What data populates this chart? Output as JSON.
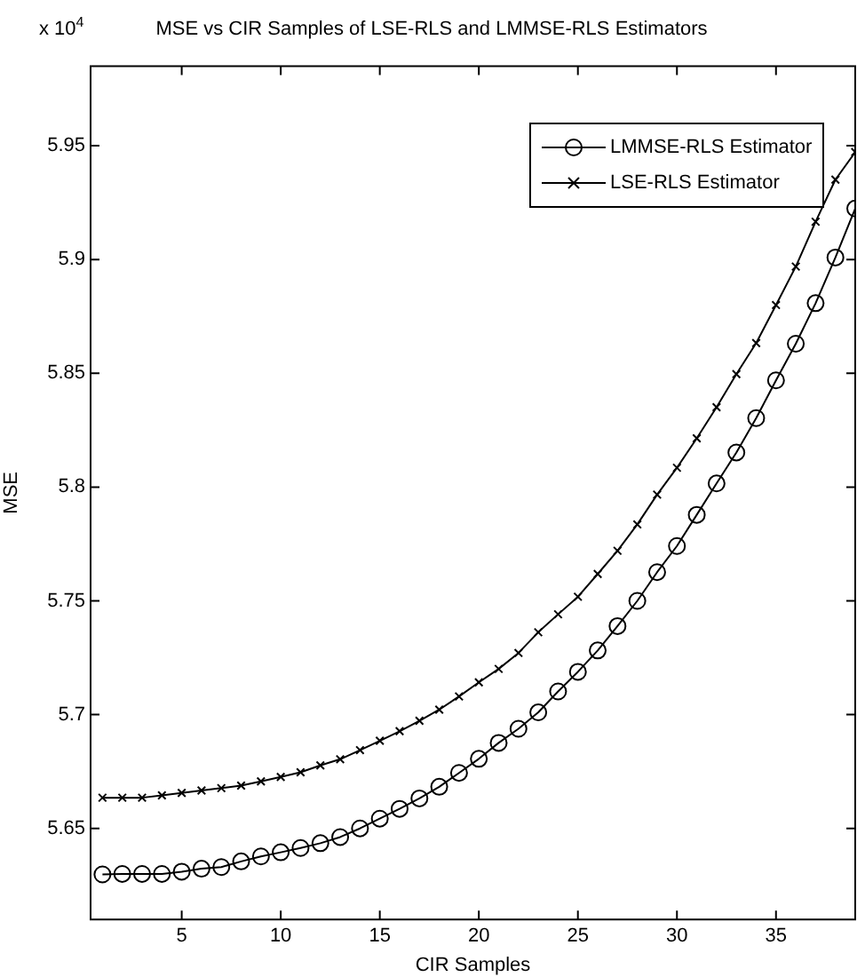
{
  "chart_data": {
    "type": "line",
    "title": "MSE vs CIR Samples of LSE-RLS and LMMSE-RLS Estimators",
    "xlabel": "CIR Samples",
    "ylabel": "MSE",
    "annotations": [
      "x 10$^{4}$"
    ],
    "x": [
      1,
      2,
      3,
      4,
      5,
      6,
      7,
      8,
      9,
      10,
      11,
      12,
      13,
      14,
      15,
      16,
      17,
      18,
      19,
      20,
      21,
      22,
      23,
      24,
      25,
      26,
      27,
      28,
      29,
      30,
      31,
      32,
      33,
      34,
      35,
      36,
      37,
      38,
      39
    ],
    "series": [
      {
        "name": "LMMSE-RLS Estimator",
        "color": "#000000",
        "marker": "circle",
        "values": [
          5.6298,
          5.63,
          5.63,
          5.63,
          5.631,
          5.6323,
          5.633,
          5.6355,
          5.6377,
          5.6395,
          5.6414,
          5.6435,
          5.6462,
          5.65,
          5.6543,
          5.6586,
          5.6632,
          5.6683,
          5.6744,
          5.6806,
          5.6876,
          5.6938,
          5.701,
          5.7102,
          5.7188,
          5.7282,
          5.7389,
          5.75,
          5.7626,
          5.7741,
          5.7878,
          5.8016,
          5.8152,
          5.8303,
          5.8469,
          5.863,
          5.8808,
          5.9009,
          5.9224
        ]
      },
      {
        "name": "LSE-RLS Estimator",
        "color": "#000000",
        "marker": "cross",
        "values": [
          5.6635,
          5.6635,
          5.6635,
          5.6645,
          5.6656,
          5.6667,
          5.6677,
          5.6688,
          5.6707,
          5.6726,
          5.6747,
          5.6777,
          5.6804,
          5.6844,
          5.6885,
          5.6927,
          5.6973,
          5.7022,
          5.708,
          5.7142,
          5.7201,
          5.7271,
          5.7362,
          5.7441,
          5.7518,
          5.7618,
          5.772,
          5.7836,
          5.7967,
          5.8085,
          5.8214,
          5.8351,
          5.8496,
          5.8633,
          5.88,
          5.8969,
          5.9166,
          5.9351,
          5.9472
        ]
      }
    ],
    "xlim": [
      0.4,
      39
    ],
    "xticks": [
      5,
      10,
      15,
      20,
      25,
      30,
      35
    ],
    "ylim": [
      5.61,
      5.985
    ],
    "yticks": [
      5.65,
      5.7,
      5.75,
      5.8,
      5.85,
      5.9,
      5.95
    ],
    "grid": false,
    "legend": "top right",
    "line_style": "solid"
  }
}
